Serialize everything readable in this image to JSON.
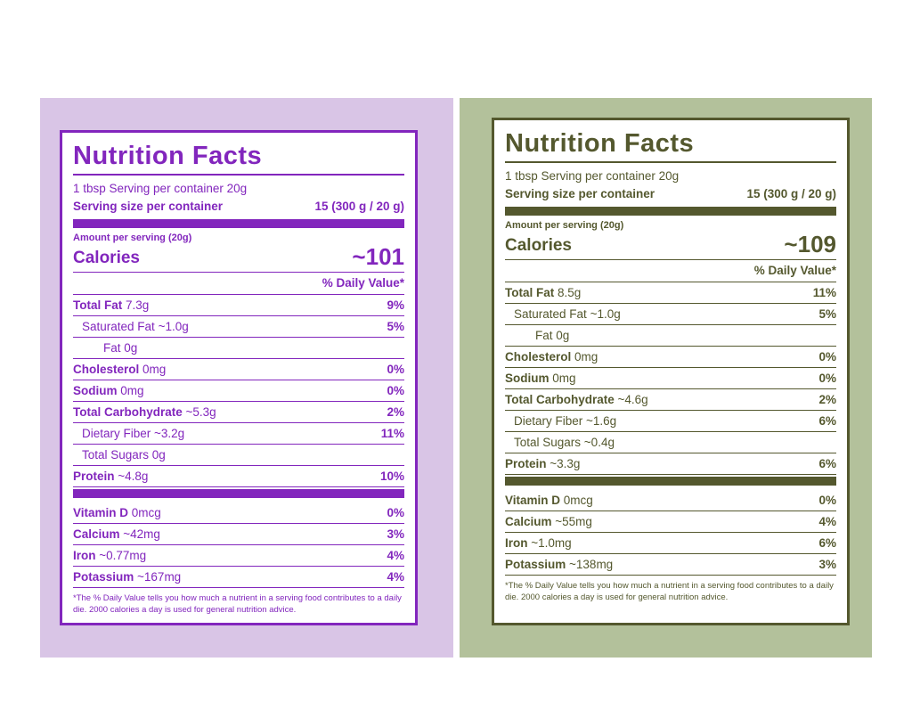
{
  "page": {
    "background": "#ffffff"
  },
  "labels": [
    {
      "name": "Label A",
      "theme": {
        "panel_bg": "#d9c5e6",
        "card_bg": "#ffffff",
        "accent": "#8226bd"
      },
      "title": "Nutrition Facts",
      "serving_line": "1 tbsp Serving per container 20g",
      "serving_size": {
        "label": "Serving size per container",
        "value": "15 (300 g / 20 g)"
      },
      "amount_line": "Amount per serving (20g)",
      "calories": {
        "label": "Calories",
        "value": "~101"
      },
      "daily_value_header": "% Daily Value*",
      "rows": [
        {
          "name": "Total Fat",
          "amount": "7.3g",
          "dv": "9%",
          "style": "main",
          "indent": 0
        },
        {
          "name": "Saturated Fat",
          "amount": "~1.0g",
          "dv": "5%",
          "style": "sub",
          "indent": 1
        },
        {
          "name": "Fat",
          "amount": "0g",
          "dv": "",
          "style": "sub",
          "indent": 2
        },
        {
          "name": "Cholesterol",
          "amount": "0mg",
          "dv": "0%",
          "style": "main",
          "indent": 0
        },
        {
          "name": "Sodium",
          "amount": "0mg",
          "dv": "0%",
          "style": "main",
          "indent": 0
        },
        {
          "name": "Total Carbohydrate",
          "amount": "~5.3g",
          "dv": "2%",
          "style": "main",
          "indent": 0
        },
        {
          "name": "Dietary Fiber",
          "amount": "~3.2g",
          "dv": "11%",
          "style": "sub",
          "indent": 1
        },
        {
          "name": "Total Sugars",
          "amount": "0g",
          "dv": "",
          "style": "sub",
          "indent": 1
        },
        {
          "name": "Protein",
          "amount": "~4.8g",
          "dv": "10%",
          "style": "main",
          "indent": 0
        }
      ],
      "micros": [
        {
          "name": "Vitamin D",
          "amount": "0mcg",
          "dv": "0%",
          "style": "main",
          "indent": 0
        },
        {
          "name": "Calcium",
          "amount": "~42mg",
          "dv": "3%",
          "style": "main",
          "indent": 0
        },
        {
          "name": "Iron",
          "amount": "~0.77mg",
          "dv": "4%",
          "style": "main",
          "indent": 0
        },
        {
          "name": "Potassium",
          "amount": "~167mg",
          "dv": "4%",
          "style": "main",
          "indent": 0
        }
      ],
      "footnote": "*The % Daily Value tells you how much a nutrient in a serving food contributes to a daily die. 2000 calories a day is used for general nutrition advice."
    },
    {
      "name": "Label B",
      "theme": {
        "panel_bg": "#b3c19b",
        "card_bg": "#ffffff",
        "accent": "#54582e"
      },
      "title": "Nutrition Facts",
      "serving_line": "1 tbsp Serving per container 20g",
      "serving_size": {
        "label": "Serving size per container",
        "value": "15 (300 g / 20 g)"
      },
      "amount_line": "Amount per serving (20g)",
      "calories": {
        "label": "Calories",
        "value": "~109"
      },
      "daily_value_header": "% Daily Value*",
      "rows": [
        {
          "name": "Total Fat",
          "amount": "8.5g",
          "dv": "11%",
          "style": "main",
          "indent": 0
        },
        {
          "name": "Saturated Fat",
          "amount": "~1.0g",
          "dv": "5%",
          "style": "sub",
          "indent": 1
        },
        {
          "name": "Fat",
          "amount": "0g",
          "dv": "",
          "style": "sub",
          "indent": 2
        },
        {
          "name": "Cholesterol",
          "amount": "0mg",
          "dv": "0%",
          "style": "main",
          "indent": 0
        },
        {
          "name": "Sodium",
          "amount": "0mg",
          "dv": "0%",
          "style": "main",
          "indent": 0
        },
        {
          "name": "Total Carbohydrate",
          "amount": "~4.6g",
          "dv": "2%",
          "style": "main",
          "indent": 0
        },
        {
          "name": "Dietary Fiber",
          "amount": "~1.6g",
          "dv": "6%",
          "style": "sub",
          "indent": 1
        },
        {
          "name": "Total Sugars",
          "amount": "~0.4g",
          "dv": "",
          "style": "sub",
          "indent": 1
        },
        {
          "name": "Protein",
          "amount": "~3.3g",
          "dv": "6%",
          "style": "main",
          "indent": 0
        }
      ],
      "micros": [
        {
          "name": "Vitamin D",
          "amount": "0mcg",
          "dv": "0%",
          "style": "main",
          "indent": 0
        },
        {
          "name": "Calcium",
          "amount": "~55mg",
          "dv": "4%",
          "style": "main",
          "indent": 0
        },
        {
          "name": "Iron",
          "amount": "~1.0mg",
          "dv": "6%",
          "style": "main",
          "indent": 0
        },
        {
          "name": "Potassium",
          "amount": "~138mg",
          "dv": "3%",
          "style": "main",
          "indent": 0
        }
      ],
      "footnote": "*The % Daily Value tells you how much a nutrient in a serving food contributes to a daily die. 2000 calories a day is used for general nutrition advice."
    }
  ]
}
